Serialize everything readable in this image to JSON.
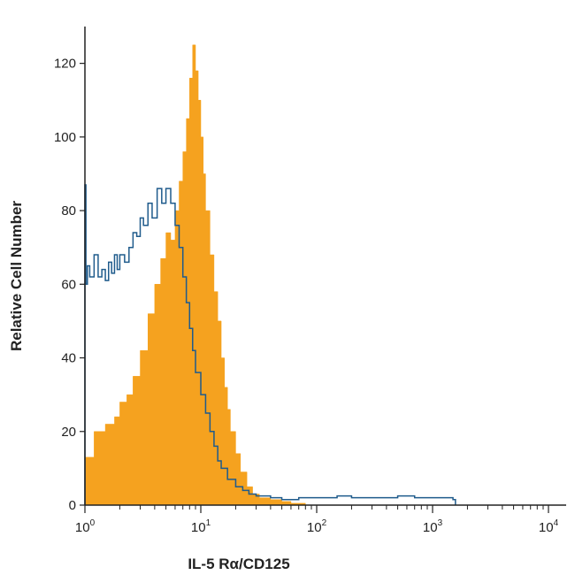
{
  "chart_data": {
    "type": "area",
    "title": "",
    "xlabel": "IL-5 Rα/CD125",
    "ylabel": "Relative Cell Number",
    "x_scale": "log10",
    "xlim": [
      1,
      10000
    ],
    "ylim": [
      0,
      130
    ],
    "x_ticks": [
      {
        "base": "10",
        "exp": "0",
        "value": 1
      },
      {
        "base": "10",
        "exp": "1",
        "value": 10
      },
      {
        "base": "10",
        "exp": "2",
        "value": 100
      },
      {
        "base": "10",
        "exp": "3",
        "value": 1000
      },
      {
        "base": "10",
        "exp": "4",
        "value": 10000
      }
    ],
    "y_ticks": [
      0,
      20,
      40,
      60,
      80,
      100,
      120
    ],
    "grid": false,
    "legend": "none",
    "series": [
      {
        "style": "filled",
        "color": "#F5A21F",
        "x": [
          1.0,
          1.2,
          1.5,
          1.8,
          2.0,
          2.3,
          2.6,
          3.0,
          3.5,
          4.0,
          4.5,
          5.0,
          5.5,
          6.0,
          6.5,
          7.0,
          7.5,
          8.0,
          8.5,
          9.0,
          9.5,
          10.0,
          10.5,
          11.0,
          12.0,
          13.0,
          14.0,
          15.0,
          16.0,
          17.0,
          18.0,
          20.0,
          22.0,
          25.0,
          28.0,
          32.0,
          40.0,
          50.0,
          60.0,
          80.0
        ],
        "y": [
          13,
          20,
          22,
          24,
          28,
          30,
          35,
          42,
          52,
          60,
          67,
          74,
          72,
          80,
          88,
          96,
          105,
          116,
          125,
          118,
          110,
          100,
          90,
          80,
          68,
          58,
          50,
          40,
          32,
          26,
          20,
          14,
          9,
          5,
          3,
          2,
          1.5,
          1,
          0.5,
          0
        ]
      },
      {
        "style": "outline",
        "color": "#1F5B8C",
        "x": [
          1.0,
          1.02,
          1.05,
          1.1,
          1.2,
          1.3,
          1.4,
          1.5,
          1.6,
          1.7,
          1.8,
          1.9,
          2.0,
          2.2,
          2.4,
          2.6,
          2.8,
          3.0,
          3.2,
          3.5,
          3.8,
          4.2,
          4.6,
          5.0,
          5.5,
          6.0,
          6.5,
          7.0,
          7.5,
          8.0,
          8.5,
          9.0,
          10.0,
          11.0,
          12.0,
          13.0,
          14.0,
          15.0,
          17.0,
          20.0,
          23.0,
          26.0,
          30.0,
          40.0,
          50.0,
          70.0,
          100.0,
          150.0,
          200.0,
          300.0,
          500.0,
          700.0,
          1000.0,
          1500.0
        ],
        "y": [
          87,
          60,
          65,
          62,
          68,
          62,
          64,
          61,
          66,
          63,
          68,
          64,
          68,
          66,
          70,
          74,
          73,
          78,
          76,
          82,
          78,
          86,
          82,
          86,
          82,
          76,
          70,
          62,
          55,
          48,
          42,
          36,
          30,
          25,
          20,
          16,
          12,
          10,
          7,
          5,
          4,
          3,
          2.5,
          2,
          1.5,
          2,
          2,
          2.5,
          2,
          2,
          2.5,
          2,
          2,
          1.5
        ]
      }
    ]
  }
}
